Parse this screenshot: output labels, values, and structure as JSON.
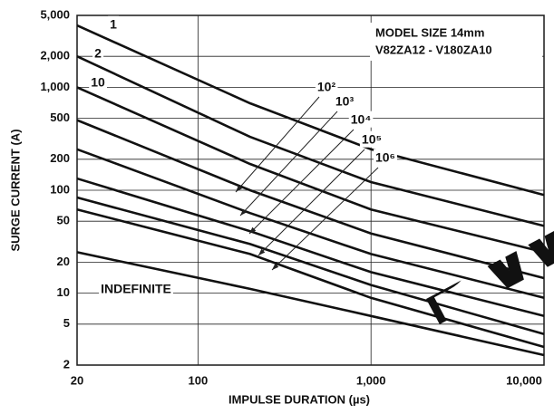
{
  "chart_data": {
    "type": "line",
    "title": "MODEL SIZE 14mm",
    "subtitle": "V82ZA12 - V180ZA10",
    "xlabel": "IMPULSE DURATION (µs)",
    "ylabel": "SURGE CURRENT (A)",
    "watermark": "EEPW",
    "log_x": true,
    "log_y": true,
    "grid": true,
    "x": [
      20,
      200,
      1000,
      10000
    ],
    "series": [
      {
        "name": "1",
        "color": "#111111",
        "values": [
          4000,
          700,
          250,
          90
        ]
      },
      {
        "name": "2",
        "color": "#111111",
        "values": [
          2000,
          330,
          120,
          45
        ]
      },
      {
        "name": "10",
        "color": "#111111",
        "values": [
          1000,
          180,
          65,
          25
        ]
      },
      {
        "name": "10²",
        "color": "#111111",
        "values": [
          480,
          100,
          38,
          14
        ]
      },
      {
        "name": "10³",
        "color": "#111111",
        "values": [
          250,
          60,
          24,
          9
        ]
      },
      {
        "name": "10⁴",
        "color": "#111111",
        "values": [
          130,
          40,
          16,
          6
        ]
      },
      {
        "name": "10⁵",
        "color": "#111111",
        "values": [
          85,
          30,
          12,
          4
        ]
      },
      {
        "name": "10⁶",
        "color": "#111111",
        "values": [
          65,
          24,
          9,
          3
        ]
      },
      {
        "name": "INDEFINITE",
        "color": "#111111",
        "values": [
          25,
          11,
          6,
          2.5
        ]
      }
    ],
    "xlim": [
      20,
      10000
    ],
    "xticks": [
      20,
      100,
      {
        "value": 1000,
        "label": "1,000"
      },
      {
        "value": 10000,
        "label": "10,000"
      }
    ],
    "ylim": [
      2,
      5000
    ],
    "yticks": [
      2,
      5,
      10,
      20,
      50,
      100,
      200,
      500,
      {
        "value": 1000,
        "label": "1,000"
      },
      {
        "value": 2000,
        "label": "2,000"
      },
      {
        "value": 5000,
        "label": "5,000"
      }
    ]
  }
}
